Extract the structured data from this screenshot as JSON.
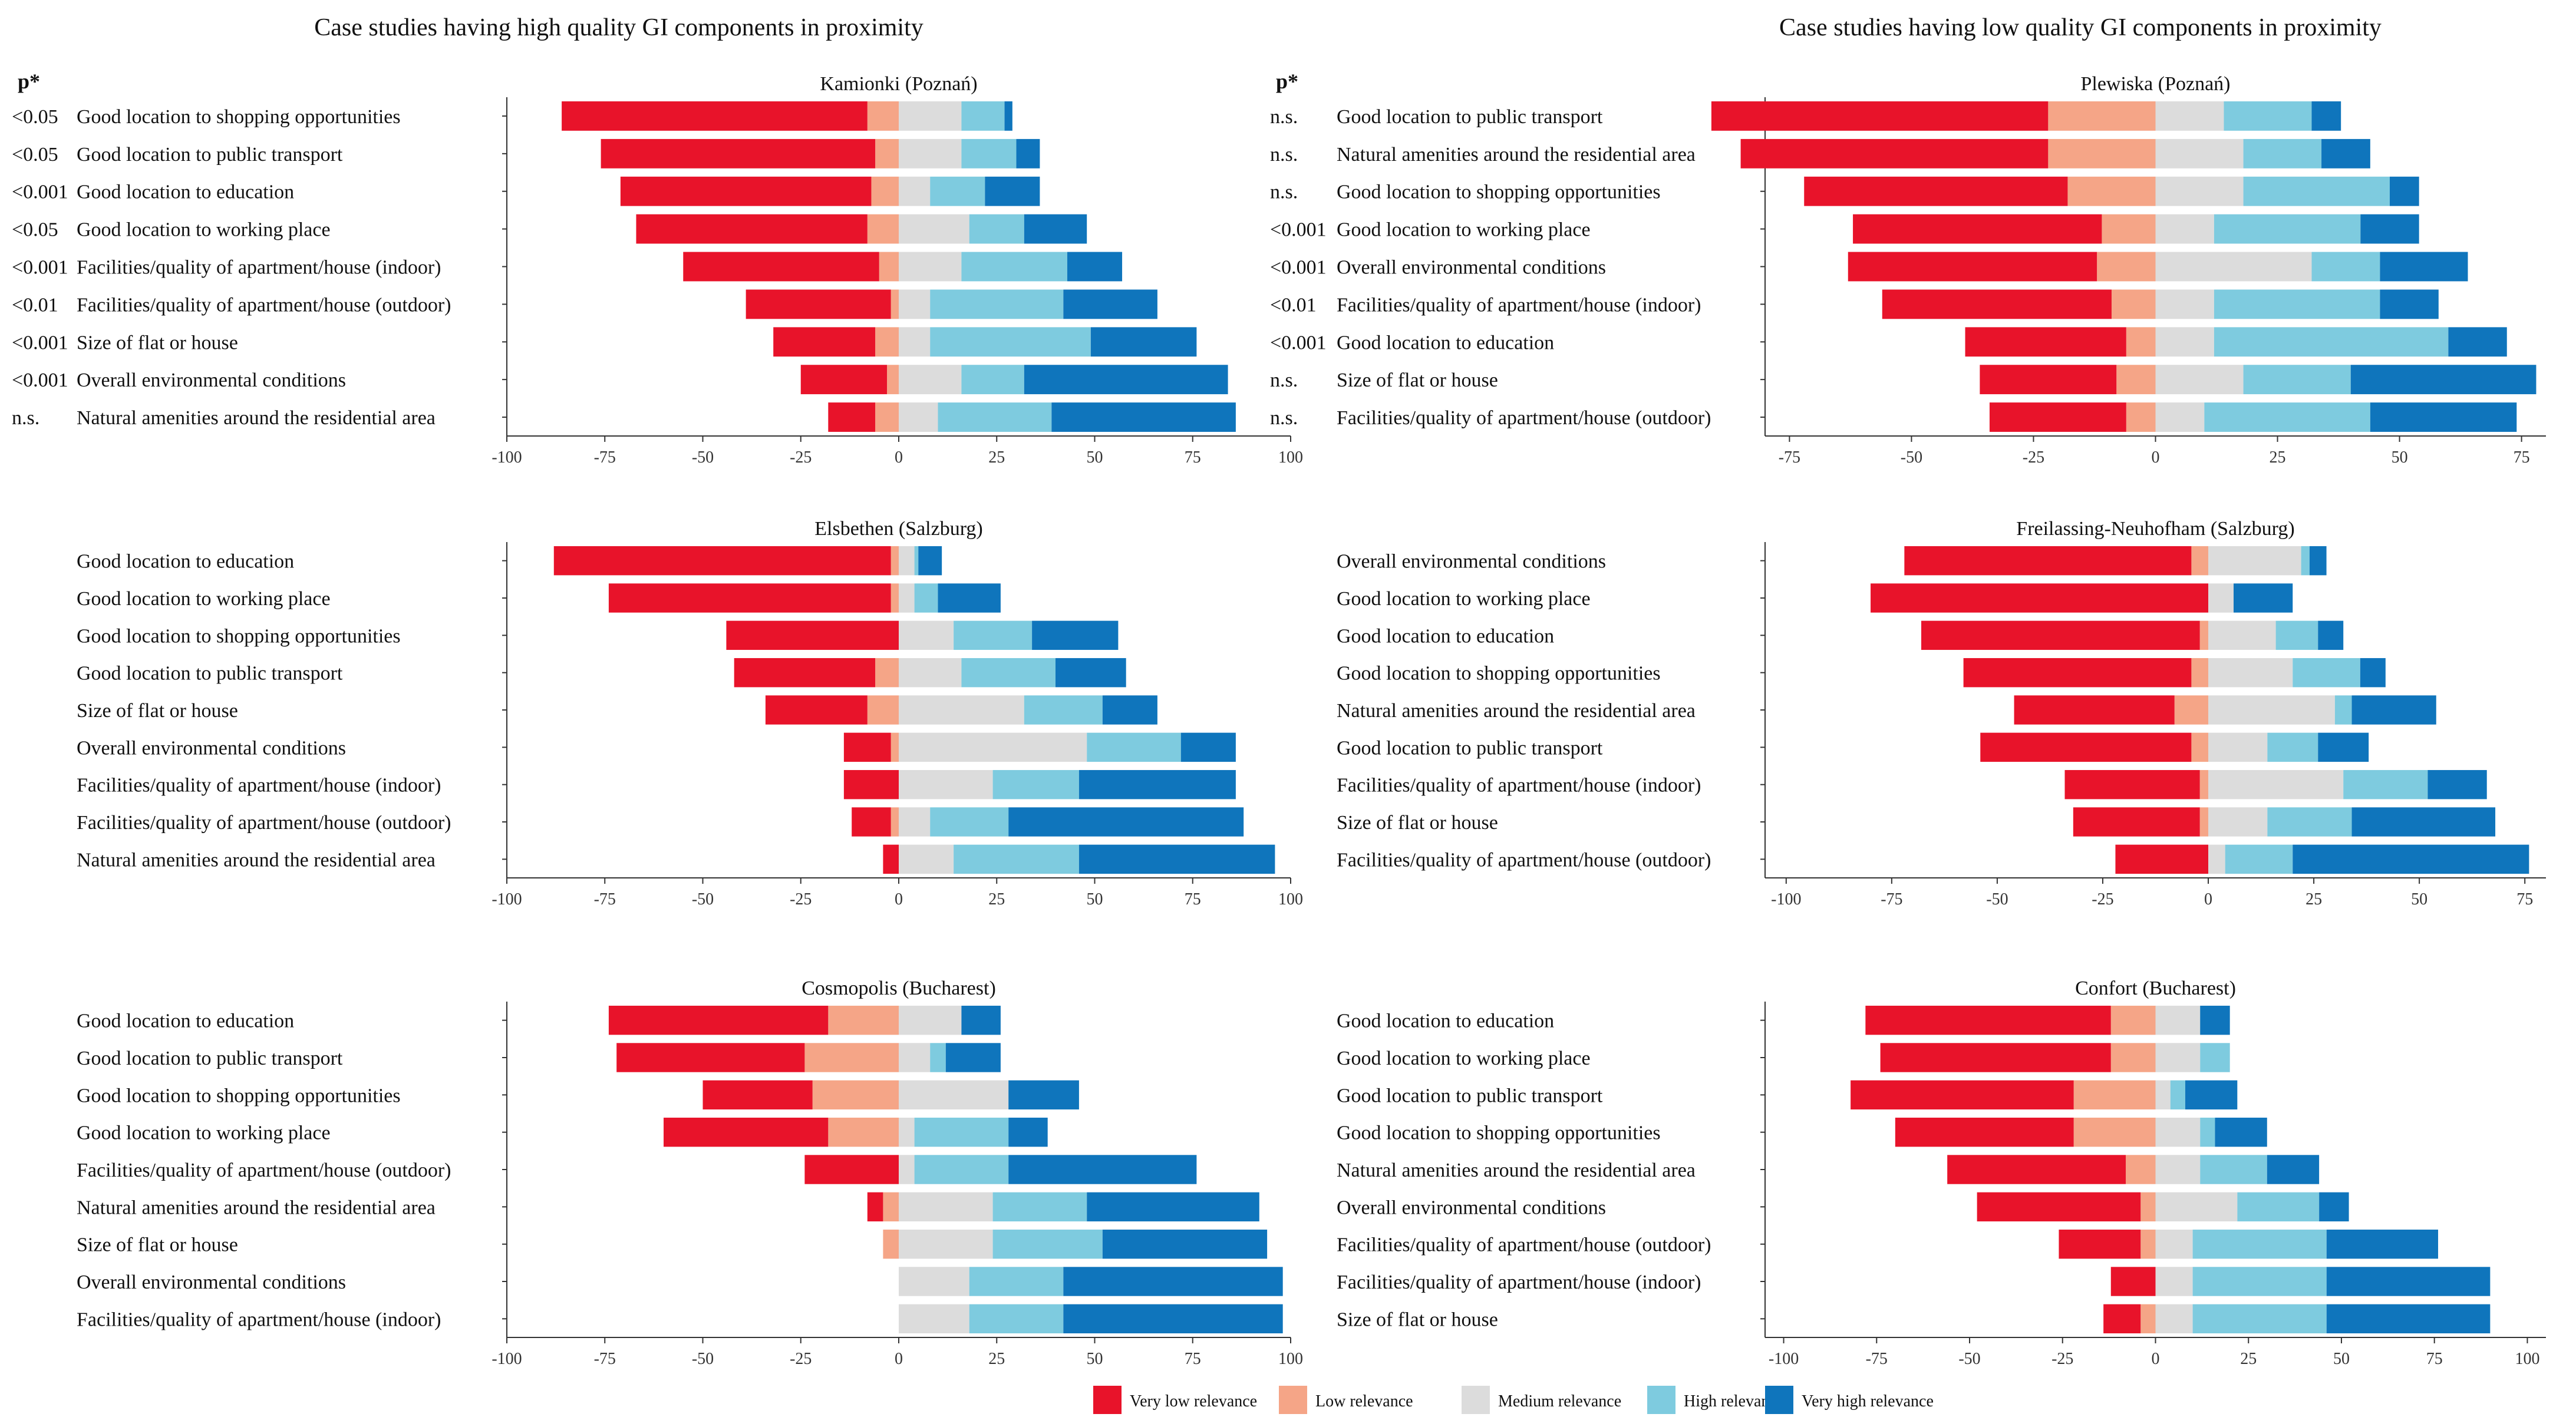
{
  "headings": {
    "high": "Case studies having high quality GI components in proximity",
    "low": "Case studies having low quality GI components in proximity",
    "p_header": "p*"
  },
  "colors": {
    "very_low": "#e8132a",
    "low": "#f5a587",
    "medium": "#dcdcdc",
    "high": "#7ecbdf",
    "very_high": "#0f75bc"
  },
  "legend": [
    "Very low relevance",
    "Low relevance",
    "Medium relevance",
    "High relevance",
    "Very high relevance"
  ],
  "chart_data": [
    {
      "type": "bar",
      "orientation": "horizontal-diverging-stacked",
      "title": "Kamionki (Poznań)",
      "xlim": [
        -100,
        100
      ],
      "ticks": [
        -100,
        -75,
        -50,
        -25,
        0,
        25,
        50,
        75,
        100
      ],
      "categories": [
        "Good location to shopping opportunities",
        "Good location to public transport",
        "Good location to education",
        "Good location to working place",
        "Facilities/quality of apartment/house (indoor)",
        "Facilities/quality of apartment/house (outdoor)",
        "Size of flat or house",
        "Overall environmental conditions",
        "Natural amenities around the residential area"
      ],
      "p_values": [
        "<0.05",
        "<0.05",
        "<0.001",
        "<0.05",
        "<0.001",
        "<0.01",
        "<0.001",
        "<0.001",
        "n.s."
      ],
      "series": [
        {
          "name": "Very low relevance",
          "values": [
            -78,
            -70,
            -64,
            -59,
            -50,
            -37,
            -26,
            -22,
            -12
          ]
        },
        {
          "name": "Low relevance",
          "values": [
            -8,
            -6,
            -7,
            -8,
            -5,
            -2,
            -6,
            -3,
            -6
          ]
        },
        {
          "name": "Medium relevance",
          "values": [
            16,
            16,
            8,
            18,
            16,
            8,
            8,
            16,
            10
          ]
        },
        {
          "name": "High relevance",
          "values": [
            11,
            14,
            14,
            14,
            27,
            34,
            41,
            16,
            29
          ]
        },
        {
          "name": "Very high relevance",
          "values": [
            2,
            6,
            14,
            16,
            14,
            24,
            27,
            52,
            47
          ]
        }
      ]
    },
    {
      "type": "bar",
      "orientation": "horizontal-diverging-stacked",
      "title": "Plewiska (Poznań)",
      "xlim": [
        -80,
        80
      ],
      "ticks": [
        -75,
        -50,
        -25,
        0,
        25,
        50,
        75
      ],
      "categories": [
        "Good location to public transport",
        "Natural amenities around the residential area",
        "Good location to shopping opportunities",
        "Good location to working place",
        "Overall environmental conditions",
        "Facilities/quality of apartment/house (indoor)",
        "Good location to education",
        "Size of flat or house",
        "Facilities/quality of apartment/house (outdoor)"
      ],
      "p_values": [
        "n.s.",
        "n.s.",
        "n.s.",
        "<0.001",
        "<0.001",
        "<0.01",
        "<0.001",
        "n.s.",
        "n.s."
      ],
      "series": [
        {
          "name": "Very low relevance",
          "values": [
            -69,
            -63,
            -54,
            -51,
            -51,
            -47,
            -33,
            -28,
            -28
          ]
        },
        {
          "name": "Low relevance",
          "values": [
            -22,
            -22,
            -18,
            -11,
            -12,
            -9,
            -6,
            -8,
            -6
          ]
        },
        {
          "name": "Medium relevance",
          "values": [
            14,
            18,
            18,
            12,
            32,
            12,
            12,
            18,
            10
          ]
        },
        {
          "name": "High relevance",
          "values": [
            18,
            16,
            30,
            30,
            14,
            34,
            48,
            22,
            34
          ]
        },
        {
          "name": "Very high relevance",
          "values": [
            6,
            10,
            6,
            12,
            18,
            12,
            12,
            38,
            30
          ]
        }
      ]
    },
    {
      "type": "bar",
      "orientation": "horizontal-diverging-stacked",
      "title": "Elsbethen (Salzburg)",
      "xlim": [
        -100,
        100
      ],
      "ticks": [
        -100,
        -75,
        -50,
        -25,
        0,
        25,
        50,
        75,
        100
      ],
      "categories": [
        "Good location to education",
        "Good location to working place",
        "Good location to shopping opportunities",
        "Good location to public transport",
        "Size of flat or house",
        "Overall environmental conditions",
        "Facilities/quality of apartment/house (indoor)",
        "Facilities/quality of apartment/house (outdoor)",
        "Natural amenities around the residential area"
      ],
      "p_values": [
        "",
        "",
        "",
        "",
        "",
        "",
        "",
        "",
        ""
      ],
      "series": [
        {
          "name": "Very low relevance",
          "values": [
            -86,
            -72,
            -44,
            -36,
            -26,
            -12,
            -14,
            -10,
            -4
          ]
        },
        {
          "name": "Low relevance",
          "values": [
            -2,
            -2,
            0,
            -6,
            -8,
            -2,
            0,
            -2,
            0
          ]
        },
        {
          "name": "Medium relevance",
          "values": [
            4,
            4,
            14,
            16,
            32,
            48,
            24,
            8,
            14
          ]
        },
        {
          "name": "High relevance",
          "values": [
            1,
            6,
            20,
            24,
            20,
            24,
            22,
            20,
            32
          ]
        },
        {
          "name": "Very high relevance",
          "values": [
            6,
            16,
            22,
            18,
            14,
            14,
            40,
            60,
            50
          ]
        }
      ]
    },
    {
      "type": "bar",
      "orientation": "horizontal-diverging-stacked",
      "title": "Freilassing-Neuhofham (Salzburg)",
      "xlim": [
        -105,
        80
      ],
      "ticks": [
        -100,
        -75,
        -50,
        -25,
        0,
        25,
        50,
        75
      ],
      "categories": [
        "Overall environmental conditions",
        "Good location to working place",
        "Good location to education",
        "Good location to shopping opportunities",
        "Natural amenities around the residential area",
        "Good location to public transport",
        "Facilities/quality of apartment/house (indoor)",
        "Size of flat or house",
        "Facilities/quality of apartment/house (outdoor)"
      ],
      "p_values": [
        "",
        "",
        "",
        "",
        "",
        "",
        "",
        "",
        ""
      ],
      "series": [
        {
          "name": "Very low relevance",
          "values": [
            -68,
            -80,
            -66,
            -54,
            -38,
            -50,
            -32,
            -30,
            -22
          ]
        },
        {
          "name": "Low relevance",
          "values": [
            -4,
            0,
            -2,
            -4,
            -8,
            -4,
            -2,
            -2,
            0
          ]
        },
        {
          "name": "Medium relevance",
          "values": [
            22,
            6,
            16,
            20,
            30,
            14,
            32,
            14,
            4
          ]
        },
        {
          "name": "High relevance",
          "values": [
            2,
            0,
            10,
            16,
            4,
            12,
            20,
            20,
            16
          ]
        },
        {
          "name": "Very high relevance",
          "values": [
            4,
            14,
            6,
            6,
            20,
            12,
            14,
            34,
            56
          ]
        }
      ]
    },
    {
      "type": "bar",
      "orientation": "horizontal-diverging-stacked",
      "title": "Cosmopolis (Bucharest)",
      "xlim": [
        -100,
        100
      ],
      "ticks": [
        -100,
        -75,
        -50,
        -25,
        0,
        25,
        50,
        75,
        100
      ],
      "categories": [
        "Good location to education",
        "Good location to public transport",
        "Good location to shopping opportunities",
        "Good location to working place",
        "Facilities/quality of apartment/house (outdoor)",
        "Natural amenities around the residential area",
        "Size of flat or house",
        "Overall environmental conditions",
        "Facilities/quality of apartment/house (indoor)"
      ],
      "p_values": [
        "",
        "",
        "",
        "",
        "",
        "",
        "",
        "",
        ""
      ],
      "series": [
        {
          "name": "Very low relevance",
          "values": [
            -56,
            -48,
            -28,
            -42,
            -24,
            -4,
            0,
            0,
            0
          ]
        },
        {
          "name": "Low relevance",
          "values": [
            -18,
            -24,
            -22,
            -18,
            0,
            -4,
            -4,
            0,
            0
          ]
        },
        {
          "name": "Medium relevance",
          "values": [
            16,
            8,
            28,
            4,
            4,
            24,
            24,
            18,
            18
          ]
        },
        {
          "name": "High relevance",
          "values": [
            0,
            4,
            0,
            24,
            24,
            24,
            28,
            24,
            24
          ]
        },
        {
          "name": "Very high relevance",
          "values": [
            10,
            14,
            18,
            10,
            48,
            44,
            42,
            56,
            56
          ]
        }
      ]
    },
    {
      "type": "bar",
      "orientation": "horizontal-diverging-stacked",
      "title": "Confort (Bucharest)",
      "xlim": [
        -105,
        105
      ],
      "ticks": [
        -100,
        -75,
        -50,
        -25,
        0,
        25,
        50,
        75,
        100
      ],
      "categories": [
        "Good location to education",
        "Good location to working place",
        "Good location to public transport",
        "Good location to shopping opportunities",
        "Natural amenities around the residential area",
        "Overall environmental conditions",
        "Facilities/quality of apartment/house (outdoor)",
        "Facilities/quality of apartment/house (indoor)",
        "Size of flat or house"
      ],
      "p_values": [
        "",
        "",
        "",
        "",
        "",
        "",
        "",
        "",
        ""
      ],
      "series": [
        {
          "name": "Very low relevance",
          "values": [
            -66,
            -62,
            -60,
            -48,
            -48,
            -44,
            -22,
            -12,
            -10
          ]
        },
        {
          "name": "Low relevance",
          "values": [
            -12,
            -12,
            -22,
            -22,
            -8,
            -4,
            -4,
            0,
            -4
          ]
        },
        {
          "name": "Medium relevance",
          "values": [
            12,
            12,
            4,
            12,
            12,
            22,
            10,
            10,
            10
          ]
        },
        {
          "name": "High relevance",
          "values": [
            0,
            8,
            4,
            4,
            18,
            22,
            36,
            36,
            36
          ]
        },
        {
          "name": "Very high relevance",
          "values": [
            8,
            0,
            14,
            14,
            14,
            8,
            30,
            44,
            44
          ]
        }
      ]
    }
  ]
}
